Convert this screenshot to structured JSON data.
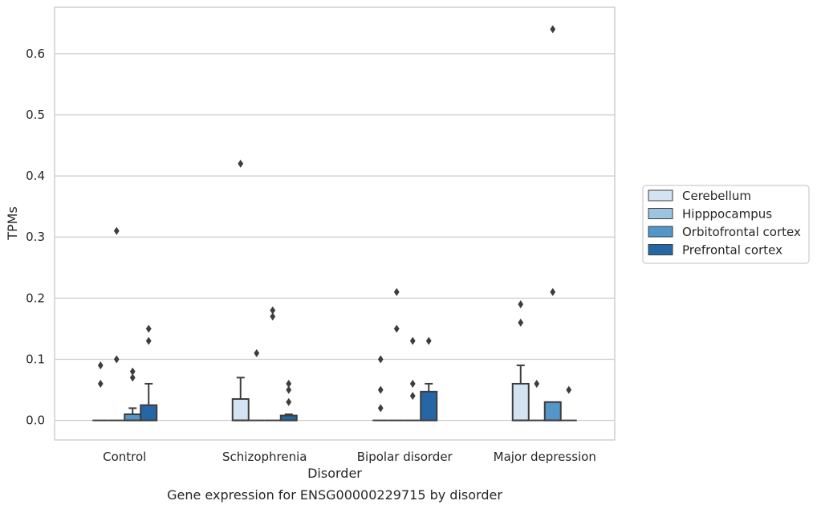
{
  "chart_data": {
    "type": "box",
    "title": "Gene expression for ENSG00000229715 by disorder",
    "xlabel": "Disorder",
    "ylabel": "TPMs",
    "ylim": [
      -0.032,
      0.676
    ],
    "yticks": [
      "0.0",
      "0.1",
      "0.2",
      "0.3",
      "0.4",
      "0.5",
      "0.6"
    ],
    "categories": [
      "Control",
      "Schizophrenia",
      "Bipolar disorder",
      "Major depression"
    ],
    "grid": "horizontal",
    "legend_position": "right",
    "series": [
      {
        "name": "Cerebellum",
        "color": "#d3e3f2",
        "boxes": [
          {
            "q1": 0,
            "median": 0,
            "q3": 0,
            "whisker_low": 0,
            "whisker_high": 0,
            "outliers": [
              0.09,
              0.06
            ]
          },
          {
            "q1": 0,
            "median": 0,
            "q3": 0.035,
            "whisker_low": 0,
            "whisker_high": 0.07,
            "outliers": [
              0.42
            ]
          },
          {
            "q1": 0,
            "median": 0,
            "q3": 0,
            "whisker_low": 0,
            "whisker_high": 0,
            "outliers": [
              0.1,
              0.05,
              0.02
            ]
          },
          {
            "q1": 0,
            "median": 0,
            "q3": 0.06,
            "whisker_low": 0,
            "whisker_high": 0.09,
            "outliers": [
              0.19,
              0.16
            ]
          }
        ]
      },
      {
        "name": "Hipppocampus",
        "color": "#9dc4df",
        "boxes": [
          {
            "q1": 0,
            "median": 0,
            "q3": 0,
            "whisker_low": 0,
            "whisker_high": 0,
            "outliers": [
              0.31,
              0.1
            ]
          },
          {
            "q1": 0,
            "median": 0,
            "q3": 0,
            "whisker_low": 0,
            "whisker_high": 0,
            "outliers": [
              0.11
            ]
          },
          {
            "q1": 0,
            "median": 0,
            "q3": 0,
            "whisker_low": 0,
            "whisker_high": 0,
            "outliers": [
              0.21,
              0.15
            ]
          },
          {
            "q1": 0,
            "median": 0,
            "q3": 0,
            "whisker_low": 0,
            "whisker_high": 0,
            "outliers": [
              0.06
            ]
          }
        ]
      },
      {
        "name": "Orbitofrontal cortex",
        "color": "#5496c7",
        "boxes": [
          {
            "q1": 0,
            "median": 0,
            "q3": 0.01,
            "whisker_low": 0,
            "whisker_high": 0.02,
            "outliers": [
              0.08,
              0.07
            ]
          },
          {
            "q1": 0,
            "median": 0,
            "q3": 0,
            "whisker_low": 0,
            "whisker_high": 0,
            "outliers": [
              0.18,
              0.17
            ]
          },
          {
            "q1": 0,
            "median": 0,
            "q3": 0,
            "whisker_low": 0,
            "whisker_high": 0,
            "outliers": [
              0.13,
              0.06,
              0.04
            ]
          },
          {
            "q1": 0,
            "median": 0,
            "q3": 0.03,
            "whisker_low": 0,
            "whisker_high": 0.03,
            "outliers": [
              0.64,
              0.21
            ]
          }
        ]
      },
      {
        "name": "Prefrontal cortex",
        "color": "#2566a4",
        "boxes": [
          {
            "q1": 0,
            "median": 0,
            "q3": 0.025,
            "whisker_low": 0,
            "whisker_high": 0.06,
            "outliers": [
              0.15,
              0.13
            ]
          },
          {
            "q1": 0,
            "median": 0,
            "q3": 0.008,
            "whisker_low": 0,
            "whisker_high": 0.01,
            "outliers": [
              0.06,
              0.05,
              0.03
            ]
          },
          {
            "q1": 0,
            "median": 0,
            "q3": 0.047,
            "whisker_low": 0,
            "whisker_high": 0.06,
            "outliers": [
              0.13
            ]
          },
          {
            "q1": 0,
            "median": 0,
            "q3": 0,
            "whisker_low": 0,
            "whisker_high": 0,
            "outliers": [
              0.05
            ]
          }
        ]
      }
    ]
  }
}
